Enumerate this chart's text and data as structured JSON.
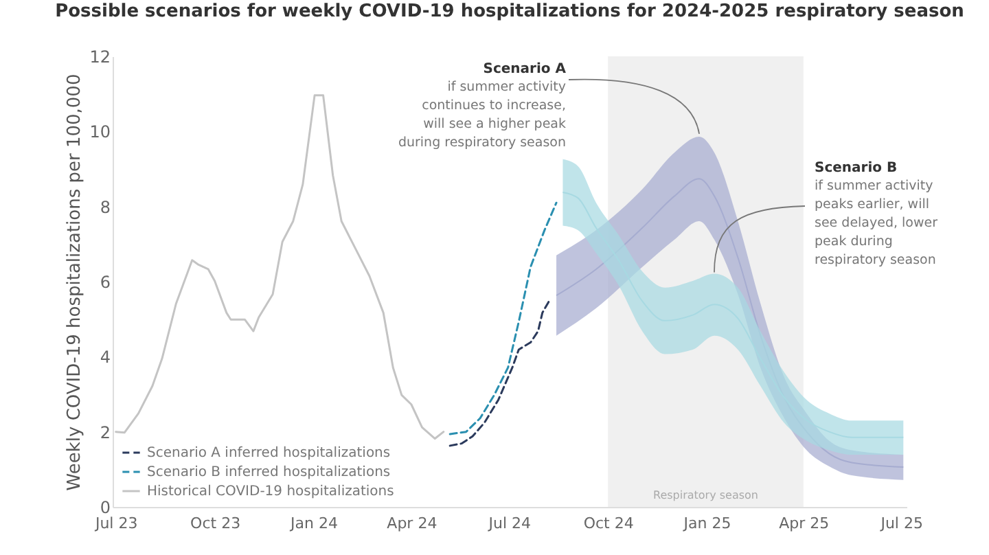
{
  "chart_data": {
    "type": "line",
    "title": "Possible scenarios for weekly COVID-19 hospitalizations for 2024-2025 respiratory season",
    "ylabel": "Weekly COVID-19 hospitalizations per 100,000",
    "xlim": [
      "2023-06-28",
      "2025-07-06"
    ],
    "xticks": [
      {
        "value": "2023-07-01",
        "label": "Jul 23"
      },
      {
        "value": "2023-10-01",
        "label": "Oct 23"
      },
      {
        "value": "2024-01-01",
        "label": "Jan 24"
      },
      {
        "value": "2024-04-01",
        "label": "Apr 24"
      },
      {
        "value": "2024-07-01",
        "label": "Jul 24"
      },
      {
        "value": "2024-10-01",
        "label": "Oct 24"
      },
      {
        "value": "2025-01-01",
        "label": "Jan 25"
      },
      {
        "value": "2025-04-01",
        "label": "Apr 25"
      },
      {
        "value": "2025-07-01",
        "label": "Jul 25"
      }
    ],
    "ylim": [
      0,
      12
    ],
    "yticks": [
      0,
      2,
      4,
      6,
      8,
      10,
      12
    ],
    "legend": "bottom left",
    "series": [
      {
        "name": "Scenario A inferred hospitalizations",
        "color": "#2b3a5c",
        "line_style": "dashed",
        "x": [
          "2024-05-07",
          "2024-05-18",
          "2024-05-28",
          "2024-06-08",
          "2024-06-21",
          "2024-07-04",
          "2024-07-10",
          "2024-07-21",
          "2024-07-28",
          "2024-08-01",
          "2024-08-07"
        ],
        "values": [
          1.63,
          1.69,
          1.88,
          2.24,
          2.85,
          3.71,
          4.19,
          4.38,
          4.68,
          5.17,
          5.47
        ]
      },
      {
        "name": "Scenario B inferred hospitalizations",
        "color": "#2a8fb0",
        "line_style": "dashed",
        "x": [
          "2024-05-07",
          "2024-05-22",
          "2024-06-04",
          "2024-06-17",
          "2024-06-30",
          "2024-07-10",
          "2024-07-21",
          "2024-08-03",
          "2024-08-14"
        ],
        "values": [
          1.94,
          2.0,
          2.36,
          2.97,
          3.71,
          4.93,
          6.39,
          7.37,
          8.1
        ]
      },
      {
        "name": "Historical COVID-19 hospitalizations",
        "color": "#c4c4c4",
        "line_style": "solid",
        "x": [
          "2023-07-01",
          "2023-07-09",
          "2023-07-22",
          "2023-08-04",
          "2023-08-13",
          "2023-08-26",
          "2023-09-10",
          "2023-09-16",
          "2023-09-25",
          "2023-10-01",
          "2023-10-12",
          "2023-10-16",
          "2023-10-29",
          "2023-11-06",
          "2023-11-11",
          "2023-11-24",
          "2023-12-03",
          "2023-12-13",
          "2023-12-22",
          "2024-01-02",
          "2024-01-10",
          "2024-01-19",
          "2024-01-27",
          "2024-02-09",
          "2024-02-22",
          "2024-03-06",
          "2024-03-15",
          "2024-03-23",
          "2024-04-01",
          "2024-04-11",
          "2024-04-23",
          "2024-05-01"
        ],
        "values": [
          2.0,
          1.98,
          2.49,
          3.22,
          3.95,
          5.41,
          6.57,
          6.45,
          6.33,
          6.02,
          5.17,
          4.99,
          4.99,
          4.68,
          5.05,
          5.66,
          7.06,
          7.61,
          8.59,
          10.96,
          10.96,
          8.83,
          7.61,
          6.88,
          6.15,
          5.17,
          3.71,
          2.98,
          2.73,
          2.12,
          1.82,
          2.0
        ]
      },
      {
        "type": "line",
        "color": "#a6acd0",
        "x": [
          "2024-08-14",
          "2024-09-20",
          "2024-11-02",
          "2024-12-02",
          "2024-12-25",
          "2025-01-08",
          "2025-01-30",
          "2025-02-20",
          "2025-03-14",
          "2025-04-04",
          "2025-04-25",
          "2025-05-16",
          "2025-07-03"
        ],
        "lower": [
          4.56,
          5.29,
          6.39,
          7.12,
          7.61,
          7.12,
          5.66,
          3.71,
          2.37,
          1.51,
          1.08,
          0.84,
          0.72
        ],
        "upper": [
          6.7,
          7.37,
          8.46,
          9.44,
          9.86,
          9.44,
          7.61,
          5.42,
          3.46,
          2.49,
          1.76,
          1.51,
          1.39
        ],
        "values": [
          5.63,
          6.33,
          7.43,
          8.28,
          8.74,
          8.28,
          6.64,
          4.57,
          2.92,
          2.0,
          1.42,
          1.18,
          1.06
        ]
      },
      {
        "type": "line",
        "color": "#a7d9e2",
        "x": [
          "2024-08-20",
          "2024-09-03",
          "2024-09-20",
          "2024-10-11",
          "2024-11-02",
          "2024-11-23",
          "2024-12-19",
          "2025-01-08",
          "2025-01-30",
          "2025-02-20",
          "2025-03-14",
          "2025-04-04",
          "2025-04-25",
          "2025-05-16",
          "2025-07-03"
        ],
        "lower": [
          7.49,
          7.37,
          6.76,
          5.9,
          4.68,
          4.07,
          4.19,
          4.56,
          4.19,
          3.22,
          2.24,
          1.76,
          1.51,
          1.39,
          1.39
        ],
        "upper": [
          9.26,
          9.08,
          8.1,
          7.24,
          6.27,
          5.84,
          6.02,
          6.21,
          5.84,
          4.68,
          3.59,
          2.85,
          2.49,
          2.3,
          2.3
        ],
        "values": [
          8.38,
          8.23,
          7.43,
          6.57,
          5.48,
          4.96,
          5.11,
          5.39,
          5.02,
          3.95,
          2.92,
          2.31,
          2.0,
          1.85,
          1.85
        ]
      }
    ],
    "bands": [
      {
        "axis": "x",
        "from": "2024-10-01",
        "to": "2025-04-01",
        "label": "Respiratory season",
        "color": "#f0f0f0"
      }
    ],
    "annotations": [
      {
        "text": "Scenario A",
        "x": "2024-12-25",
        "y": 9.9
      },
      "if summer activity continues to increase, will see a higher peak during respiratory season",
      "Scenario B",
      {
        "text": "if summer activity peaks earlier, will see delayed, lower peak during respiratory season",
        "x": "2025-01-08",
        "y": 6.21
      }
    ]
  }
}
